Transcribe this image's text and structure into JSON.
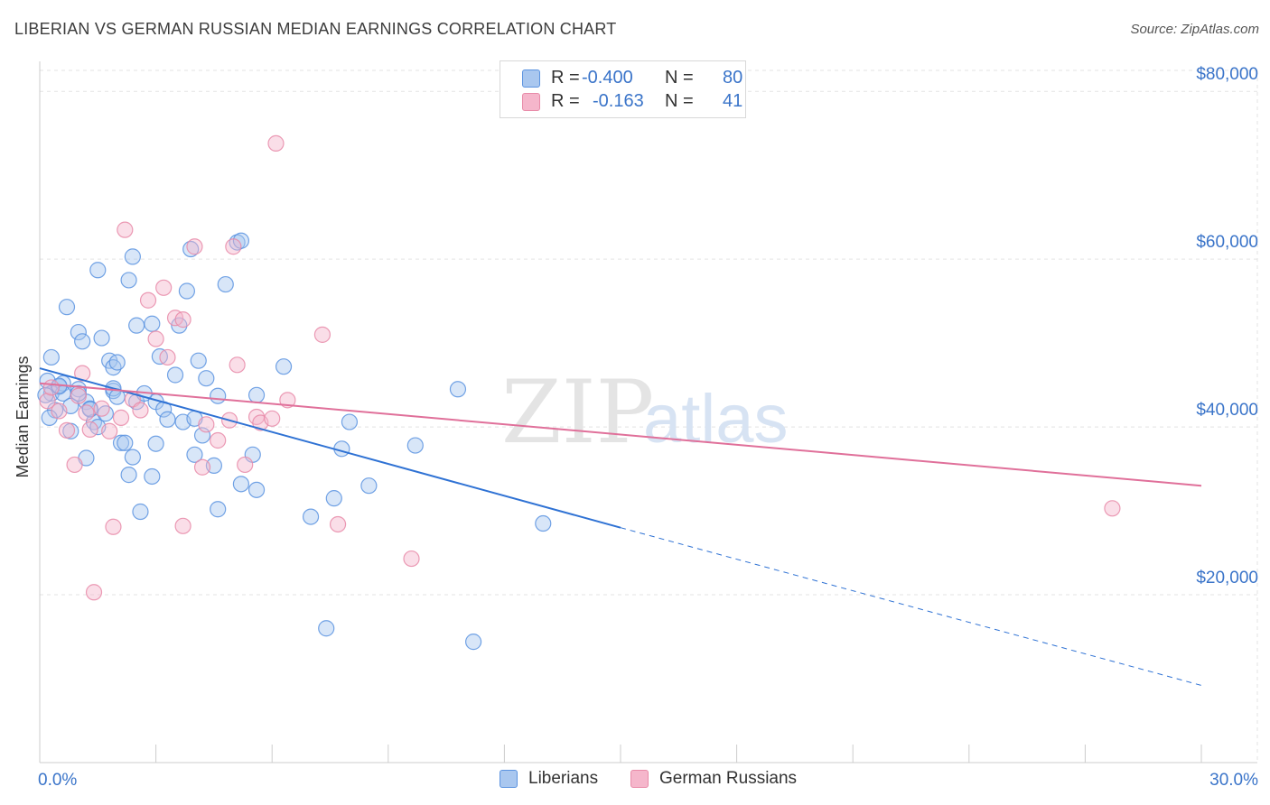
{
  "title": "LIBERIAN VS GERMAN RUSSIAN MEDIAN EARNINGS CORRELATION CHART",
  "source": "Source: ZipAtlas.com",
  "watermark": {
    "zip": "ZIP",
    "atlas": "atlas"
  },
  "legend": {
    "rows": [
      {
        "r_label": "R =",
        "r_value": "-0.400",
        "n_label": "N =",
        "n_value": "80",
        "color": "#a9c7ef"
      },
      {
        "r_label": "R =",
        "r_value": "-0.163",
        "n_label": "N =",
        "n_value": "41",
        "color": "#f5b6cb"
      }
    ]
  },
  "bottom_legend": [
    {
      "label": "Liberians",
      "color": "#a9c7ef"
    },
    {
      "label": "German Russians",
      "color": "#f5b6cb"
    }
  ],
  "chart_data": {
    "type": "scatter",
    "title": "LIBERIAN VS GERMAN RUSSIAN MEDIAN EARNINGS CORRELATION CHART",
    "xlabel": "",
    "ylabel": "Median Earnings",
    "xlim": [
      0,
      30
    ],
    "ylim": [
      0,
      82500
    ],
    "x_tick_labels": [
      "0.0%",
      "30.0%"
    ],
    "y_ticks": [
      {
        "value": 20000,
        "label": "$20,000"
      },
      {
        "value": 40000,
        "label": "$40,000"
      },
      {
        "value": 60000,
        "label": "$60,000"
      },
      {
        "value": 80000,
        "label": "$80,000"
      }
    ],
    "grid": true,
    "series": [
      {
        "name": "Liberians",
        "color": "#5b93e0",
        "fill": "#a9c7ef",
        "line_color": "#2f72d4",
        "trend": {
          "x_start": 0,
          "y_start": 47000,
          "x_solid_end": 15,
          "y_solid_end": 28000,
          "x_end": 30,
          "y_end": 9200
        },
        "points": [
          [
            0.2,
            45500
          ],
          [
            0.3,
            44000
          ],
          [
            0.3,
            48300
          ],
          [
            0.4,
            42000
          ],
          [
            0.5,
            44800
          ],
          [
            0.6,
            45200
          ],
          [
            0.6,
            44000
          ],
          [
            0.7,
            54300
          ],
          [
            0.8,
            39500
          ],
          [
            0.8,
            42500
          ],
          [
            1.0,
            51300
          ],
          [
            1.0,
            44500
          ],
          [
            1.1,
            50200
          ],
          [
            1.2,
            36300
          ],
          [
            1.2,
            43000
          ],
          [
            1.3,
            42200
          ],
          [
            1.4,
            40600
          ],
          [
            1.5,
            58700
          ],
          [
            1.5,
            40000
          ],
          [
            1.6,
            50600
          ],
          [
            1.7,
            41600
          ],
          [
            1.8,
            47900
          ],
          [
            1.9,
            44300
          ],
          [
            1.9,
            44600
          ],
          [
            1.9,
            47100
          ],
          [
            2.0,
            43600
          ],
          [
            2.0,
            47700
          ],
          [
            2.1,
            38100
          ],
          [
            2.2,
            38100
          ],
          [
            2.3,
            34300
          ],
          [
            2.3,
            57500
          ],
          [
            2.4,
            36400
          ],
          [
            2.4,
            60300
          ],
          [
            2.5,
            52100
          ],
          [
            2.5,
            43000
          ],
          [
            2.6,
            29900
          ],
          [
            2.9,
            34100
          ],
          [
            2.9,
            52300
          ],
          [
            3.0,
            38000
          ],
          [
            3.0,
            43000
          ],
          [
            3.1,
            48400
          ],
          [
            3.2,
            42100
          ],
          [
            3.3,
            40900
          ],
          [
            3.6,
            52100
          ],
          [
            3.7,
            40600
          ],
          [
            3.8,
            56200
          ],
          [
            3.9,
            61200
          ],
          [
            4.0,
            36700
          ],
          [
            4.0,
            41000
          ],
          [
            4.1,
            47900
          ],
          [
            4.2,
            39000
          ],
          [
            4.3,
            45800
          ],
          [
            4.5,
            35400
          ],
          [
            4.6,
            43700
          ],
          [
            4.6,
            30200
          ],
          [
            4.8,
            57000
          ],
          [
            5.1,
            62000
          ],
          [
            5.2,
            62200
          ],
          [
            5.2,
            33200
          ],
          [
            5.5,
            36700
          ],
          [
            5.6,
            32500
          ],
          [
            5.6,
            43800
          ],
          [
            6.3,
            47200
          ],
          [
            7.0,
            29300
          ],
          [
            7.4,
            16000
          ],
          [
            7.6,
            31500
          ],
          [
            7.8,
            37400
          ],
          [
            8.0,
            40600
          ],
          [
            8.5,
            33000
          ],
          [
            9.7,
            37800
          ],
          [
            10.8,
            44500
          ],
          [
            11.2,
            14400
          ],
          [
            13.0,
            28500
          ],
          [
            0.15,
            43800
          ],
          [
            0.25,
            41100
          ],
          [
            0.5,
            44900
          ],
          [
            1.0,
            44000
          ],
          [
            1.3,
            42100
          ],
          [
            2.7,
            44000
          ],
          [
            3.5,
            46200
          ]
        ]
      },
      {
        "name": "German Russians",
        "color": "#e88aa8",
        "fill": "#f5b6cb",
        "line_color": "#e0709a",
        "trend": {
          "x_start": 0,
          "y_start": 45200,
          "x_end": 30,
          "y_end": 33000
        },
        "points": [
          [
            0.2,
            43100
          ],
          [
            0.3,
            44700
          ],
          [
            0.5,
            41900
          ],
          [
            0.7,
            39600
          ],
          [
            0.9,
            35500
          ],
          [
            1.0,
            43700
          ],
          [
            1.1,
            46400
          ],
          [
            1.2,
            41700
          ],
          [
            1.3,
            39700
          ],
          [
            1.4,
            20300
          ],
          [
            1.6,
            42200
          ],
          [
            1.8,
            39500
          ],
          [
            1.9,
            28100
          ],
          [
            2.1,
            41100
          ],
          [
            2.2,
            63500
          ],
          [
            2.4,
            43300
          ],
          [
            2.6,
            42000
          ],
          [
            2.8,
            55100
          ],
          [
            3.0,
            50500
          ],
          [
            3.2,
            56600
          ],
          [
            3.3,
            48300
          ],
          [
            3.5,
            53000
          ],
          [
            3.7,
            52800
          ],
          [
            3.7,
            28200
          ],
          [
            4.0,
            61500
          ],
          [
            4.2,
            35200
          ],
          [
            4.3,
            40300
          ],
          [
            4.6,
            38400
          ],
          [
            4.9,
            40800
          ],
          [
            5.0,
            61500
          ],
          [
            5.1,
            47400
          ],
          [
            5.3,
            35500
          ],
          [
            5.6,
            41200
          ],
          [
            5.7,
            40500
          ],
          [
            6.0,
            41000
          ],
          [
            6.1,
            73800
          ],
          [
            6.4,
            43200
          ],
          [
            7.3,
            51000
          ],
          [
            7.7,
            28400
          ],
          [
            9.6,
            24300
          ],
          [
            27.7,
            30300
          ]
        ]
      }
    ]
  }
}
